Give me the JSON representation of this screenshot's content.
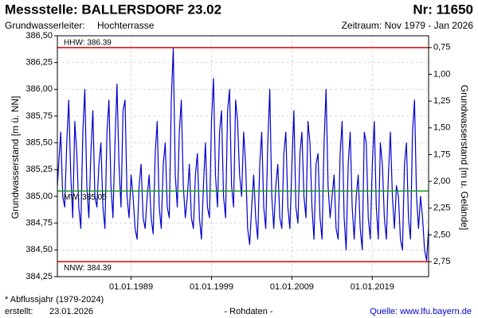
{
  "chart_data": {
    "type": "line",
    "title": "Messstelle: BALLERSDORF 23.02",
    "number": "Nr: 11650",
    "aquifer_label": "Grundwasserleiter:",
    "aquifer": "Hochterrasse",
    "period": "Zeitraum: Nov 1979 - Jan 2026",
    "ylabel": "Grundwasserstand [m ü. NN]",
    "y2label": "Grundwasserstand [m u. Gelände]",
    "footnote": "* Abflussjahr (1979-2024)",
    "created_label": "erstellt:",
    "created": "23.01.2026",
    "data_note": "- Rohdaten -",
    "source": "Quelle: www.lfu.bayern.de",
    "grid": true,
    "xlim": [
      "1979-11-01",
      "2026-01-01"
    ],
    "xticks": [
      {
        "value": "1989-01-01",
        "label": "01.01.1989"
      },
      {
        "value": "1999-01-01",
        "label": "01.01.1999"
      },
      {
        "value": "2009-01-01",
        "label": "01.01.2009"
      },
      {
        "value": "2019-01-01",
        "label": "01.01.2019"
      }
    ],
    "ylim": [
      384.25,
      386.5
    ],
    "yticks": [
      {
        "value": 384.25,
        "label": "384,25"
      },
      {
        "value": 384.5,
        "label": "384,50"
      },
      {
        "value": 384.75,
        "label": "384,75"
      },
      {
        "value": 385,
        "label": "385,00"
      },
      {
        "value": 385.25,
        "label": "385,25"
      },
      {
        "value": 385.5,
        "label": "385,50"
      },
      {
        "value": 385.75,
        "label": "385,75"
      },
      {
        "value": 386,
        "label": "386,00"
      },
      {
        "value": 386.25,
        "label": "386,25"
      },
      {
        "value": 386.5,
        "label": "386,50"
      }
    ],
    "y2lim": [
      2.89,
      0.64
    ],
    "y2ticks": [
      {
        "value": 0.75,
        "label": "0,75"
      },
      {
        "value": 1,
        "label": "1,00"
      },
      {
        "value": 1.25,
        "label": "1,25"
      },
      {
        "value": 1.5,
        "label": "1,50"
      },
      {
        "value": 1.75,
        "label": "1,75"
      },
      {
        "value": 2,
        "label": "2,00"
      },
      {
        "value": 2.25,
        "label": "2,25"
      },
      {
        "value": 2.5,
        "label": "2,50"
      },
      {
        "value": 2.75,
        "label": "2,75"
      }
    ],
    "reference_lines": [
      {
        "label": "HHW: 386.39",
        "value": 386.39,
        "color": "#e00000"
      },
      {
        "label": "MW: 385.05",
        "value": 385.05,
        "color": "#1a9a1a"
      },
      {
        "label": "NNW: 384.39",
        "value": 384.39,
        "color": "#e00000"
      }
    ],
    "x": [
      "1979-11-01",
      "1980-01-01",
      "1980-04-01",
      "1980-07-01",
      "1980-10-01",
      "1981-01-01",
      "1981-04-01",
      "1981-07-01",
      "1981-10-01",
      "1982-01-01",
      "1982-04-01",
      "1982-07-01",
      "1982-10-01",
      "1983-01-01",
      "1983-04-01",
      "1983-07-01",
      "1983-10-01",
      "1984-01-01",
      "1984-04-01",
      "1984-07-01",
      "1984-10-01",
      "1985-01-01",
      "1985-04-01",
      "1985-07-01",
      "1985-10-01",
      "1986-01-01",
      "1986-04-01",
      "1986-07-01",
      "1986-10-01",
      "1987-01-01",
      "1987-04-01",
      "1987-07-01",
      "1987-10-01",
      "1988-01-01",
      "1988-04-01",
      "1988-07-01",
      "1988-10-01",
      "1989-01-01",
      "1989-04-01",
      "1989-07-01",
      "1989-10-01",
      "1990-01-01",
      "1990-04-01",
      "1990-07-01",
      "1990-10-01",
      "1991-01-01",
      "1991-04-01",
      "1991-07-01",
      "1991-10-01",
      "1992-01-01",
      "1992-04-01",
      "1992-07-01",
      "1992-10-01",
      "1993-01-01",
      "1993-04-01",
      "1993-07-01",
      "1993-10-01",
      "1994-01-01",
      "1994-04-01",
      "1994-07-01",
      "1994-10-01",
      "1995-01-01",
      "1995-04-01",
      "1995-07-01",
      "1995-10-01",
      "1996-01-01",
      "1996-04-01",
      "1996-07-01",
      "1996-10-01",
      "1997-01-01",
      "1997-04-01",
      "1997-07-01",
      "1997-10-01",
      "1998-01-01",
      "1998-04-01",
      "1998-07-01",
      "1998-10-01",
      "1999-01-01",
      "1999-04-01",
      "1999-07-01",
      "1999-10-01",
      "2000-01-01",
      "2000-04-01",
      "2000-07-01",
      "2000-10-01",
      "2001-01-01",
      "2001-04-01",
      "2001-07-01",
      "2001-10-01",
      "2002-01-01",
      "2002-04-01",
      "2002-07-01",
      "2002-10-01",
      "2003-01-01",
      "2003-04-01",
      "2003-07-01",
      "2003-10-01",
      "2004-01-01",
      "2004-04-01",
      "2004-07-01",
      "2004-10-01",
      "2005-01-01",
      "2005-04-01",
      "2005-07-01",
      "2005-10-01",
      "2006-01-01",
      "2006-04-01",
      "2006-07-01",
      "2006-10-01",
      "2007-01-01",
      "2007-04-01",
      "2007-07-01",
      "2007-10-01",
      "2008-01-01",
      "2008-04-01",
      "2008-07-01",
      "2008-10-01",
      "2009-01-01",
      "2009-04-01",
      "2009-07-01",
      "2009-10-01",
      "2010-01-01",
      "2010-04-01",
      "2010-07-01",
      "2010-10-01",
      "2011-01-01",
      "2011-04-01",
      "2011-07-01",
      "2011-10-01",
      "2012-01-01",
      "2012-04-01",
      "2012-07-01",
      "2012-10-01",
      "2013-01-01",
      "2013-04-01",
      "2013-07-01",
      "2013-10-01",
      "2014-01-01",
      "2014-04-01",
      "2014-07-01",
      "2014-10-01",
      "2015-01-01",
      "2015-04-01",
      "2015-07-01",
      "2015-10-01",
      "2016-01-01",
      "2016-04-01",
      "2016-07-01",
      "2016-10-01",
      "2017-01-01",
      "2017-04-01",
      "2017-07-01",
      "2017-10-01",
      "2018-01-01",
      "2018-04-01",
      "2018-07-01",
      "2018-10-01",
      "2019-01-01",
      "2019-04-01",
      "2019-07-01",
      "2019-10-01",
      "2020-01-01",
      "2020-04-01",
      "2020-07-01",
      "2020-10-01",
      "2021-01-01",
      "2021-04-01",
      "2021-07-01",
      "2021-10-01",
      "2022-01-01",
      "2022-04-01",
      "2022-07-01",
      "2022-10-01",
      "2023-01-01",
      "2023-04-01",
      "2023-07-01",
      "2023-10-01",
      "2024-01-01",
      "2024-04-01",
      "2024-07-01",
      "2024-10-01",
      "2025-01-01",
      "2025-04-01",
      "2025-07-01",
      "2025-10-01",
      "2026-01-01"
    ],
    "series": [
      {
        "color": "#0000cc",
        "values": [
          385.1,
          385.3,
          385.6,
          385.0,
          384.9,
          385.5,
          385.9,
          385.2,
          384.8,
          385.7,
          385.4,
          384.9,
          384.7,
          385.6,
          386.0,
          385.1,
          384.8,
          385.4,
          385.8,
          385.0,
          384.9,
          385.3,
          385.5,
          384.9,
          384.7,
          385.6,
          385.9,
          385.1,
          384.8,
          385.5,
          386.05,
          385.3,
          384.9,
          385.8,
          385.9,
          385.0,
          384.8,
          385.2,
          385.0,
          384.7,
          384.6,
          385.1,
          385.3,
          384.8,
          384.7,
          385.0,
          385.2,
          384.8,
          384.65,
          385.4,
          385.7,
          384.9,
          384.7,
          385.3,
          385.5,
          384.9,
          384.8,
          385.9,
          386.38,
          385.2,
          384.9,
          385.6,
          385.9,
          385.1,
          384.8,
          385.0,
          385.3,
          384.8,
          384.7,
          385.2,
          385.4,
          384.8,
          384.6,
          385.1,
          385.5,
          384.9,
          384.8,
          385.7,
          386.1,
          385.2,
          384.9,
          385.6,
          385.8,
          385.0,
          384.8,
          385.8,
          386.0,
          385.1,
          384.9,
          385.9,
          385.7,
          385.2,
          385.0,
          385.6,
          385.3,
          384.7,
          384.55,
          384.9,
          385.2,
          384.8,
          384.6,
          385.3,
          385.6,
          384.9,
          384.7,
          385.5,
          386.0,
          385.0,
          384.7,
          385.1,
          385.3,
          384.8,
          384.7,
          385.4,
          385.6,
          384.9,
          384.7,
          385.3,
          385.8,
          384.9,
          384.75,
          385.4,
          385.6,
          385.0,
          384.8,
          385.7,
          385.5,
          384.9,
          384.6,
          385.3,
          385.4,
          384.8,
          384.6,
          385.5,
          386.0,
          385.1,
          384.8,
          385.0,
          385.2,
          384.7,
          384.6,
          385.4,
          385.7,
          384.8,
          384.5,
          385.3,
          385.6,
          384.9,
          384.6,
          385.0,
          385.2,
          384.7,
          384.5,
          385.6,
          385.5,
          384.8,
          384.6,
          385.3,
          385.7,
          384.9,
          384.6,
          385.5,
          385.3,
          384.8,
          384.6,
          385.2,
          385.6,
          385.0,
          384.7,
          385.1,
          385.0,
          384.6,
          384.5,
          385.3,
          385.5,
          384.8,
          384.6,
          385.6,
          385.9,
          385.0,
          384.7,
          385.0,
          384.8,
          384.5,
          384.4,
          384.7
        ]
      }
    ]
  }
}
